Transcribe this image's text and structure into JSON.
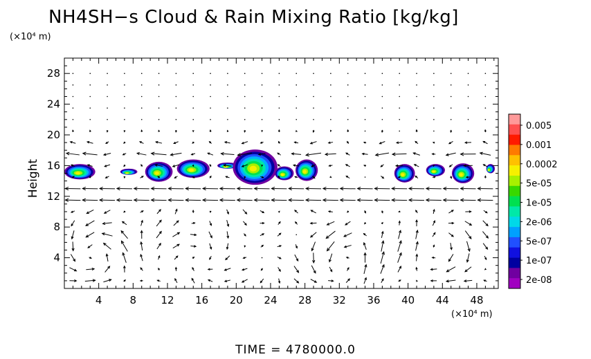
{
  "chart_data": {
    "type": "heatmap",
    "title": "NH4SH−s Cloud & Rain Mixing Ratio [kg/kg]",
    "ylabel": "Height",
    "y_unit": "(×10⁴ m)",
    "x_unit": "(×10⁴ m)",
    "x_ticks": [
      4,
      8,
      12,
      16,
      20,
      24,
      28,
      32,
      36,
      40,
      44,
      48
    ],
    "y_ticks": [
      4,
      8,
      12,
      16,
      20,
      24,
      28
    ],
    "xlim": [
      0,
      50.5
    ],
    "ylim": [
      0,
      30
    ],
    "colorbar": {
      "labels": [
        "0.005",
        "0.001",
        "0.0002",
        "5e-05",
        "1e-05",
        "2e-06",
        "5e-07",
        "1e-07",
        "2e-08"
      ],
      "colors": [
        "#ff9a9a",
        "#ff5050",
        "#ff1a00",
        "#ff7a00",
        "#ffc000",
        "#f6f000",
        "#a8f000",
        "#38d800",
        "#00e050",
        "#00e8a8",
        "#00d8e8",
        "#00a0ff",
        "#2050ff",
        "#1010e0",
        "#0000a0",
        "#7000a0",
        "#a000c0"
      ]
    },
    "clouds": [
      {
        "x": 1.8,
        "y": 15.2,
        "w": 3.6,
        "h": 2.0
      },
      {
        "x": 7.5,
        "y": 15.2,
        "w": 2.0,
        "h": 0.8
      },
      {
        "x": 11.0,
        "y": 15.2,
        "w": 3.2,
        "h": 2.6
      },
      {
        "x": 15.0,
        "y": 15.6,
        "w": 3.8,
        "h": 2.4
      },
      {
        "x": 19.0,
        "y": 16.0,
        "w": 2.4,
        "h": 0.8
      },
      {
        "x": 22.2,
        "y": 15.8,
        "w": 5.2,
        "h": 4.6
      },
      {
        "x": 25.6,
        "y": 15.0,
        "w": 2.2,
        "h": 1.8
      },
      {
        "x": 28.2,
        "y": 15.4,
        "w": 2.6,
        "h": 2.8
      },
      {
        "x": 39.6,
        "y": 15.0,
        "w": 2.4,
        "h": 2.4
      },
      {
        "x": 43.2,
        "y": 15.4,
        "w": 2.2,
        "h": 1.6
      },
      {
        "x": 46.4,
        "y": 15.0,
        "w": 2.6,
        "h": 2.6
      },
      {
        "x": 49.6,
        "y": 15.6,
        "w": 1.0,
        "h": 1.2
      }
    ]
  },
  "time_label": "TIME  =  4780000.0"
}
